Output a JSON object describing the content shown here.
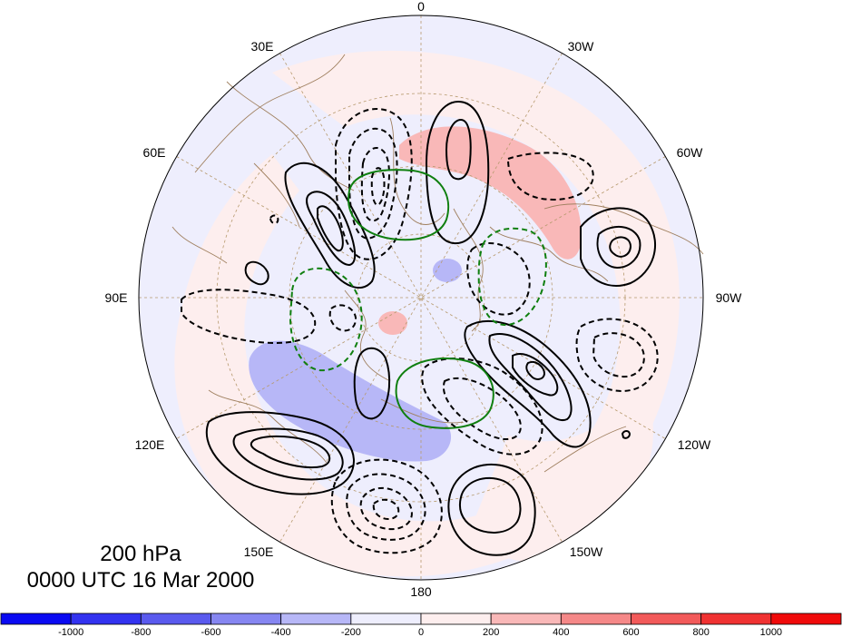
{
  "map": {
    "projection": "north-polar-stereographic",
    "level": "200 hPa",
    "time": "0000 UTC 16 Mar 2000",
    "longitude_labels": [
      "0",
      "30W",
      "60W",
      "90W",
      "120W",
      "150W",
      "180",
      "150E",
      "120E",
      "90E",
      "60E",
      "30E"
    ],
    "shading_field": "signed anomaly (colorbar units)",
    "contours": {
      "solid_black": "positive contours",
      "dashed_black": "negative contours",
      "green": "secondary field contours (solid positive, dashed negative)"
    }
  },
  "colorbar": {
    "tick_labels": [
      "-1000",
      "-800",
      "-600",
      "-400",
      "-200",
      "0",
      "200",
      "400",
      "600",
      "800",
      "1000"
    ],
    "colors": [
      "#0a0af2",
      "#3333f0",
      "#5a5aee",
      "#8686f1",
      "#b7b7f7",
      "#eeeefd",
      "#fdeeee",
      "#f9b8b8",
      "#f58888",
      "#f25a5a",
      "#f03232",
      "#f00a0a"
    ]
  }
}
